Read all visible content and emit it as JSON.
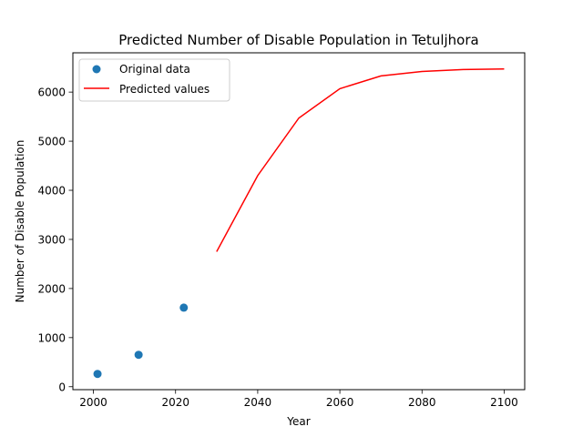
{
  "chart_data": {
    "type": "line",
    "title": "Predicted Number of Disable Population in Tetuljhora",
    "xlabel": "Year",
    "ylabel": "Number of Disable Population",
    "xlim": [
      1995,
      2105
    ],
    "ylim": [
      -60,
      6800
    ],
    "x_ticks": [
      2000,
      2020,
      2040,
      2060,
      2080,
      2100
    ],
    "y_ticks": [
      0,
      1000,
      2000,
      3000,
      4000,
      5000,
      6000
    ],
    "grid": false,
    "legend_position": "upper-left",
    "series": [
      {
        "name": "Original data",
        "kind": "scatter",
        "color": "#1f77b4",
        "x": [
          2001,
          2011,
          2022
        ],
        "y": [
          260,
          650,
          1610
        ]
      },
      {
        "name": "Predicted values",
        "kind": "line",
        "color": "#ff0000",
        "x": [
          2030,
          2040,
          2050,
          2060,
          2070,
          2080,
          2090,
          2100
        ],
        "y": [
          2750,
          4300,
          5470,
          6070,
          6330,
          6420,
          6460,
          6470
        ]
      }
    ]
  }
}
